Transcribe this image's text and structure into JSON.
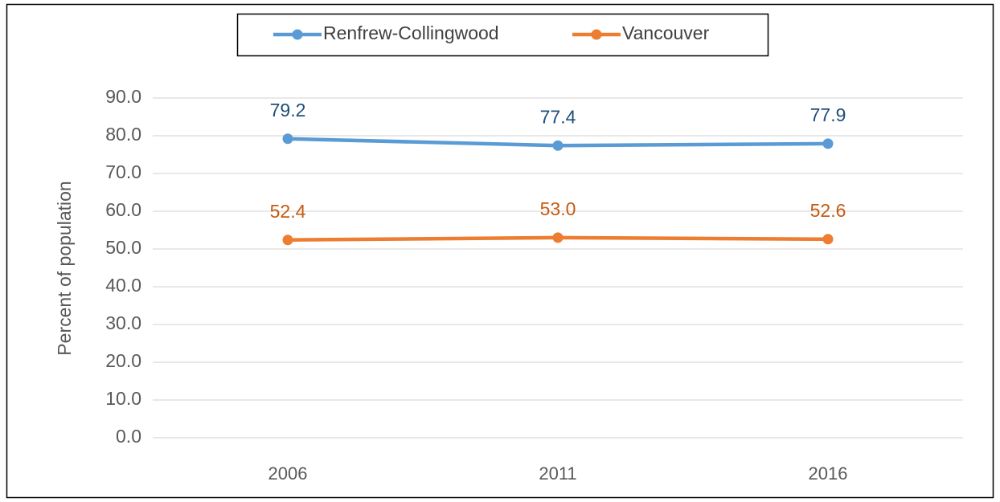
{
  "chart_data": {
    "type": "line",
    "y_label": "Percent of population",
    "categories": [
      "2006",
      "2011",
      "2016"
    ],
    "series": [
      {
        "name": "Renfrew-Collingwood",
        "color": "#5b9bd5",
        "label_color": "#1f4e79",
        "values": [
          79.2,
          77.4,
          77.9
        ]
      },
      {
        "name": "Vancouver",
        "color": "#ed7d31",
        "label_color": "#c55a11",
        "values": [
          52.4,
          53,
          52.6
        ],
        "value_labels": [
          "52.4",
          "53.0",
          "52.6"
        ]
      }
    ],
    "ylim": [
      0,
      90
    ],
    "yticks": [
      {
        "value": 0,
        "label": "0.0"
      },
      {
        "value": 10,
        "label": "10.0"
      },
      {
        "value": 20,
        "label": "20.0"
      },
      {
        "value": 30,
        "label": "30.0"
      },
      {
        "value": 40,
        "label": "40.0"
      },
      {
        "value": 50,
        "label": "50.0"
      },
      {
        "value": 60,
        "label": "60.0"
      },
      {
        "value": 70,
        "label": "70.0"
      },
      {
        "value": 80,
        "label": "80.0"
      },
      {
        "value": 90,
        "label": "90.0"
      }
    ],
    "grid": true,
    "legend": "top"
  }
}
